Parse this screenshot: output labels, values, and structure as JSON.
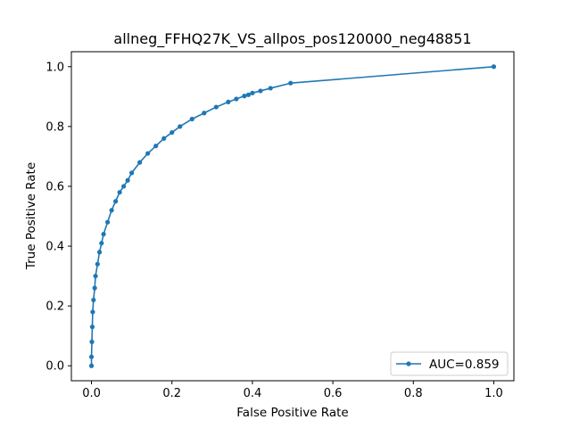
{
  "chart_data": {
    "type": "line",
    "title": "allneg_FFHQ27K_VS_allpos_pos120000_neg48851",
    "xlabel": "False Positive Rate",
    "ylabel": "True Positive Rate",
    "xlim": [
      -0.05,
      1.05
    ],
    "ylim": [
      -0.05,
      1.05
    ],
    "x_ticks": [
      0.0,
      0.2,
      0.4,
      0.6,
      0.8,
      1.0
    ],
    "y_ticks": [
      0.0,
      0.2,
      0.4,
      0.6,
      0.8,
      1.0
    ],
    "x_tick_labels": [
      "0.0",
      "0.2",
      "0.4",
      "0.6",
      "0.8",
      "1.0"
    ],
    "y_tick_labels": [
      "0.0",
      "0.2",
      "0.4",
      "0.6",
      "0.8",
      "1.0"
    ],
    "grid": false,
    "legend_position": "lower-right",
    "series": [
      {
        "name": "AUC=0.859",
        "color": "#1f77b4",
        "marker": "circle",
        "x": [
          0.0,
          0.0,
          0.001,
          0.002,
          0.003,
          0.005,
          0.008,
          0.01,
          0.015,
          0.02,
          0.025,
          0.03,
          0.04,
          0.05,
          0.06,
          0.07,
          0.08,
          0.09,
          0.1,
          0.12,
          0.14,
          0.16,
          0.18,
          0.2,
          0.22,
          0.25,
          0.28,
          0.31,
          0.34,
          0.36,
          0.38,
          0.39,
          0.4,
          0.42,
          0.445,
          0.495,
          1.0
        ],
        "y": [
          0.0,
          0.03,
          0.08,
          0.13,
          0.18,
          0.22,
          0.26,
          0.3,
          0.34,
          0.38,
          0.41,
          0.44,
          0.48,
          0.52,
          0.55,
          0.58,
          0.6,
          0.62,
          0.645,
          0.68,
          0.71,
          0.735,
          0.76,
          0.78,
          0.8,
          0.825,
          0.845,
          0.865,
          0.882,
          0.892,
          0.902,
          0.906,
          0.912,
          0.919,
          0.928,
          0.945,
          1.0
        ]
      }
    ]
  }
}
